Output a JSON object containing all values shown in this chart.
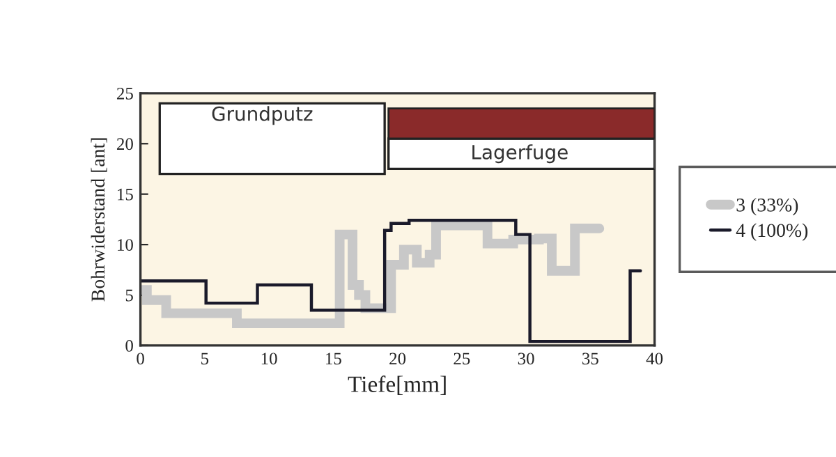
{
  "chart_data": {
    "type": "step",
    "xlabel": "Tiefe[mm]",
    "ylabel": "Bohrwiderstand [ant]",
    "annotations": [
      "Grundputz",
      "Lagerfuge"
    ],
    "xlim": [
      0,
      40
    ],
    "ylim": [
      0,
      25
    ],
    "xticks": [
      0,
      5,
      10,
      15,
      20,
      25,
      30,
      35,
      40
    ],
    "yticks": [
      0,
      5,
      10,
      15,
      20,
      25
    ],
    "bands": [
      {
        "axis": "y",
        "from": 20.5,
        "to": 23.5,
        "color": "#8a2a2a"
      }
    ],
    "grid": false,
    "legend": "right",
    "line_style": "solid",
    "marker": "none",
    "series": [
      {
        "name": "3 (33%)",
        "color": "#c8c8c8",
        "x": [
          0,
          0.5,
          2,
          7.5,
          15.5,
          16.5,
          17,
          17.5,
          18,
          19.5,
          20.5,
          21.5,
          22.5,
          23,
          27,
          29,
          31,
          32,
          33.8,
          35.7
        ],
        "values": [
          5.5,
          4.5,
          3.2,
          2.2,
          11,
          6,
          5,
          3.7,
          3.7,
          8,
          9.5,
          8.2,
          9,
          11.9,
          10.1,
          10.5,
          10.6,
          7.4,
          11.6,
          11.6
        ]
      },
      {
        "name": "4 (100%)",
        "color": "#1a1a2a",
        "x": [
          0,
          5.1,
          9.1,
          13.3,
          19.0,
          19.5,
          20.9,
          29.2,
          30.3,
          38.1,
          38.9
        ],
        "values": [
          6.4,
          4.2,
          6.0,
          3.5,
          11.4,
          12.1,
          12.4,
          11.0,
          0.4,
          7.4,
          7.4
        ]
      }
    ]
  }
}
